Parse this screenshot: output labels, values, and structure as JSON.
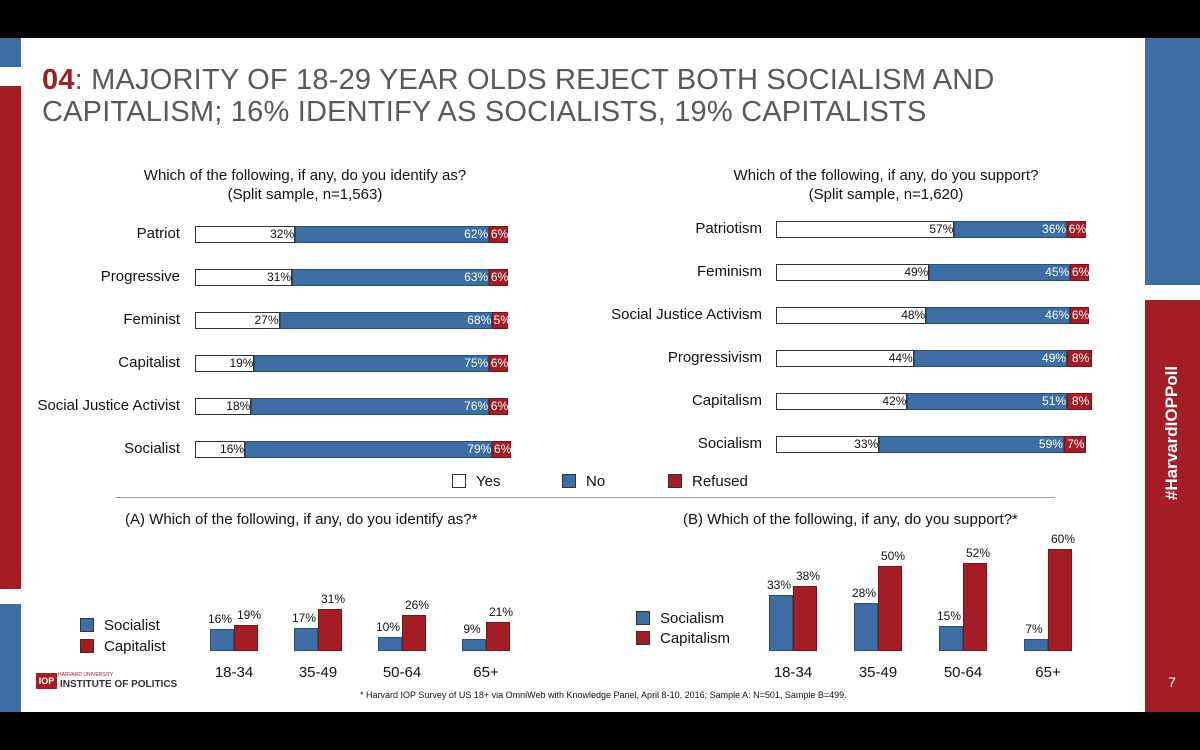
{
  "slide": {
    "title_num": "04",
    "title_text": ": MAJORITY OF 18-29 YEAR OLDS REJECT BOTH SOCIALISM AND CAPITALISM; 16% IDENTIFY AS SOCIALISTS, 19% CAPITALISTS",
    "hashtag": "#HarvardIOPPoll",
    "page_number": "7",
    "logo_small": "HARVARD UNIVERSITY",
    "logo_iop": "IOP",
    "logo_name": "INSTITUTE OF POLITICS",
    "footnote": "* Harvard IOP Survey of US 18+ via OmniWeb with Knowledge Panel, April 8-10, 2016; Sample A: N=501, Sample B=499.",
    "colors": {
      "yes": "#ffffff",
      "no": "#3c6ea3",
      "refused": "#a51d24",
      "title_text": "#595959"
    }
  },
  "legend_main": {
    "yes": "Yes",
    "no": "No",
    "refused": "Refused"
  },
  "legend_identify": {
    "socialist": "Socialist",
    "capitalist": "Capitalist"
  },
  "legend_support": {
    "socialism": "Socialism",
    "capitalism": "Capitalism"
  },
  "chart_data": [
    {
      "type": "bar",
      "orientation": "horizontal-stacked",
      "title_line1": "Which of the following, if any, do you identify as?",
      "title_line2": "(Split sample, n=1,563)",
      "categories": [
        "Patriot",
        "Progressive",
        "Feminist",
        "Capitalist",
        "Social Justice Activist",
        "Socialist"
      ],
      "series": [
        {
          "name": "Yes",
          "values": [
            32,
            31,
            27,
            19,
            18,
            16
          ]
        },
        {
          "name": "No",
          "values": [
            62,
            63,
            68,
            75,
            76,
            79
          ]
        },
        {
          "name": "Refused",
          "values": [
            6,
            6,
            5,
            6,
            6,
            6
          ]
        }
      ],
      "unit": "%"
    },
    {
      "type": "bar",
      "orientation": "horizontal-stacked",
      "title_line1": "Which of the following, if any, do you support?",
      "title_line2": "(Split sample, n=1,620)",
      "categories": [
        "Patriotism",
        "Feminism",
        "Social Justice Activism",
        "Progressivism",
        "Capitalism",
        "Socialism"
      ],
      "series": [
        {
          "name": "Yes",
          "values": [
            57,
            49,
            48,
            44,
            42,
            33
          ]
        },
        {
          "name": "No",
          "values": [
            36,
            45,
            46,
            49,
            51,
            59
          ]
        },
        {
          "name": "Refused",
          "values": [
            6,
            6,
            6,
            8,
            8,
            7
          ]
        }
      ],
      "unit": "%"
    },
    {
      "type": "bar",
      "orientation": "vertical-grouped",
      "title": "(A) Which of the following, if any, do you identify as?*",
      "categories": [
        "18-34",
        "35-49",
        "50-64",
        "65+"
      ],
      "series": [
        {
          "name": "Socialist",
          "values": [
            16,
            17,
            10,
            9
          ]
        },
        {
          "name": "Capitalist",
          "values": [
            19,
            31,
            26,
            21
          ]
        }
      ],
      "unit": "%"
    },
    {
      "type": "bar",
      "orientation": "vertical-grouped",
      "title": "(B) Which of the following, if any, do you support?*",
      "categories": [
        "18-34",
        "35-49",
        "50-64",
        "65+"
      ],
      "series": [
        {
          "name": "Socialism",
          "values": [
            33,
            28,
            15,
            7
          ]
        },
        {
          "name": "Capitalism",
          "values": [
            38,
            50,
            52,
            60
          ]
        }
      ],
      "unit": "%"
    }
  ]
}
